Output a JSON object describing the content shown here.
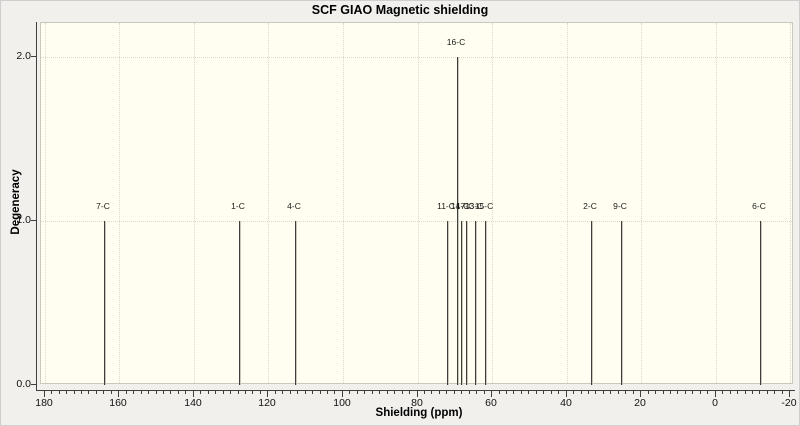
{
  "chart_data": {
    "type": "bar",
    "style": "stick-spectrum",
    "title": "SCF GIAO Magnetic shielding",
    "xlabel": "Shielding (ppm)",
    "ylabel": "Degeneracy",
    "xlim": [
      181,
      -21
    ],
    "x_axis_reversed": true,
    "ylim": [
      0,
      2.21
    ],
    "x_major_ticks": [
      180,
      160,
      140,
      120,
      100,
      80,
      60,
      40,
      20,
      0,
      -20
    ],
    "x_minor_tick_step": 2,
    "y_major_ticks": [
      0,
      1,
      2
    ],
    "y_tick_labels": [
      "0.0",
      "1.0",
      "2.0"
    ],
    "grid": "dotted on major ticks",
    "legend": "none",
    "peaks": [
      {
        "label": "7-C",
        "shielding_ppm": 164.0,
        "degeneracy": 1
      },
      {
        "label": "1-C",
        "shielding_ppm": 127.8,
        "degeneracy": 1
      },
      {
        "label": "4-C",
        "shielding_ppm": 112.9,
        "degeneracy": 1
      },
      {
        "label": "11-C",
        "shielding_ppm": 72.0,
        "degeneracy": 1
      },
      {
        "label": "16-C",
        "shielding_ppm": 69.5,
        "degeneracy": 2
      },
      {
        "label": "14-C",
        "shielding_ppm": 68.3,
        "degeneracy": 1
      },
      {
        "label": "17-C",
        "shielding_ppm": 66.9,
        "degeneracy": 1
      },
      {
        "label": "13-C",
        "shielding_ppm": 64.5,
        "degeneracy": 1
      },
      {
        "label": "15-C",
        "shielding_ppm": 61.8,
        "degeneracy": 1
      },
      {
        "label": "2-C",
        "shielding_ppm": 33.5,
        "degeneracy": 1
      },
      {
        "label": "9-C",
        "shielding_ppm": 25.4,
        "degeneracy": 1
      },
      {
        "label": "6-C",
        "shielding_ppm": -12.0,
        "degeneracy": 1
      }
    ],
    "colors": {
      "outer_background": "#f1f0ec",
      "plot_background": "#fffef0",
      "grid": "#d9d8c9",
      "axis": "#3f3f3f",
      "peak_line": "#3d3d3d",
      "text": "#000000"
    }
  }
}
